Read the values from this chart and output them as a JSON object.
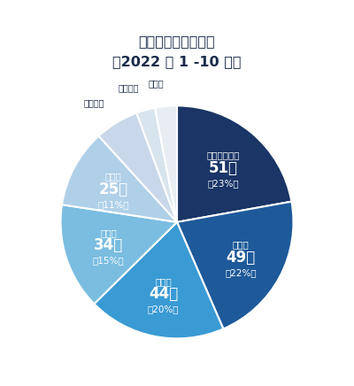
{
  "title_line1": "物価高倒産　業種別",
  "title_line2": "（2022 年 1 -10 月）",
  "segments": [
    {
      "label": "運輸・通信業",
      "count": "51件",
      "pct": "（23%）",
      "value": 51,
      "color": "#1a3566"
    },
    {
      "label": "建設業",
      "count": "49件",
      "pct": "（22%）",
      "value": 49,
      "color": "#1e5a9a"
    },
    {
      "label": "製造業",
      "count": "44件",
      "pct": "（20%）",
      "value": 44,
      "color": "#3a9ad4"
    },
    {
      "label": "卸売業",
      "count": "34件",
      "pct": "（15%）",
      "value": 34,
      "color": "#7abde0"
    },
    {
      "label": "小売業",
      "count": "25件",
      "pct": "（11%）",
      "value": 25,
      "color": "#b0d0e8"
    },
    {
      "label": "サービス",
      "count": "",
      "pct": "",
      "value": 14,
      "color": "#c8d8ea"
    },
    {
      "label": "不動産業",
      "count": "",
      "pct": "",
      "value": 6,
      "color": "#d8e4ee"
    },
    {
      "label": "その他",
      "count": "",
      "pct": "",
      "value": 7,
      "color": "#e8edf3"
    }
  ],
  "bg_color": "#ffffff",
  "title_color": "#1a2a4a",
  "label_color_white": "#ffffff",
  "label_color_dark": "#1a2a4a",
  "startangle": 90,
  "figsize": [
    4.0,
    4.36
  ],
  "dpi": 100
}
